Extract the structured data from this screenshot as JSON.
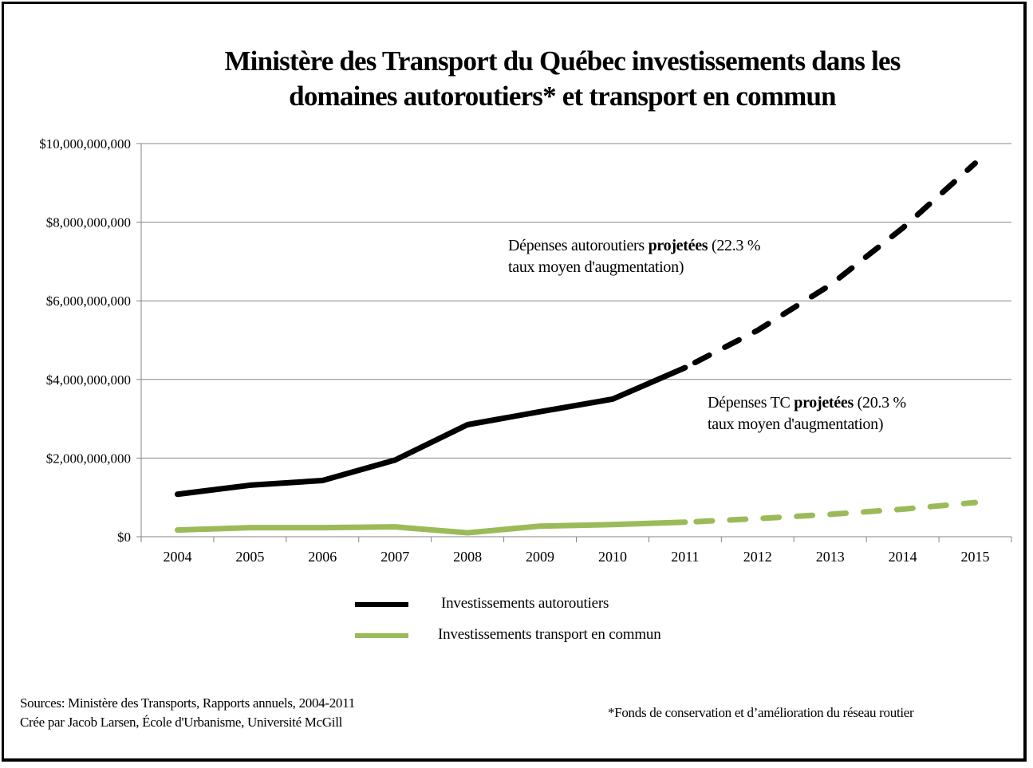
{
  "chart_data": {
    "type": "line",
    "title_lines": [
      "Ministère des Transport du Québec investissements dans les",
      "domaines autoroutiers* et transport en commun"
    ],
    "xlabel": "",
    "ylabel": "",
    "categories": [
      "2004",
      "2005",
      "2006",
      "2007",
      "2008",
      "2009",
      "2010",
      "2011",
      "2012",
      "2013",
      "2014",
      "2015"
    ],
    "ylim": [
      0,
      10000000000
    ],
    "yticks": [
      0,
      2000000000,
      4000000000,
      6000000000,
      8000000000,
      10000000000
    ],
    "ytick_labels": [
      "$0",
      "$2,000,000,000",
      "$4,000,000,000",
      "$6,000,000,000",
      "$8,000,000,000",
      "$10,000,000,000"
    ],
    "grid": true,
    "projection_start": "2011",
    "series": [
      {
        "name": "Investissements autoroutiers",
        "color": "#000000",
        "actual_through": "2011",
        "projected_from": "2011",
        "values": [
          1080000000,
          1310000000,
          1430000000,
          1950000000,
          2850000000,
          3180000000,
          3500000000,
          4300000000,
          5250000000,
          6400000000,
          7850000000,
          9500000000
        ]
      },
      {
        "name": "Investissements transport en commun",
        "color": "#9bbb59",
        "actual_through": "2011",
        "projected_from": "2011",
        "values": [
          170000000,
          230000000,
          230000000,
          250000000,
          100000000,
          270000000,
          310000000,
          370000000,
          460000000,
          570000000,
          700000000,
          870000000
        ]
      }
    ],
    "annotations": [
      {
        "id": "auto",
        "text_normal_1": "Dépenses autoroutiers ",
        "text_bold": "projetées",
        "text_normal_2": " (22.3 %",
        "line2": "taux moyen d'augmentation)"
      },
      {
        "id": "tc",
        "text_normal_1": "Dépenses TC ",
        "text_bold": "projetées",
        "text_normal_2": " (20.3 %",
        "line2": "taux moyen d'augmentation)"
      }
    ],
    "legend": {
      "position": "bottom-center",
      "entries": [
        "Investissements autoroutiers",
        "Investissements transport en commun"
      ]
    }
  },
  "footer": {
    "sources": "Sources: Ministère des Transports, Rapports annuels, 2004-2011",
    "credit": "Crée par Jacob Larsen,  École d'Urbanisme, Université McGill",
    "footnote": "*Fonds de conservation et d’amélioration du réseau routier"
  }
}
